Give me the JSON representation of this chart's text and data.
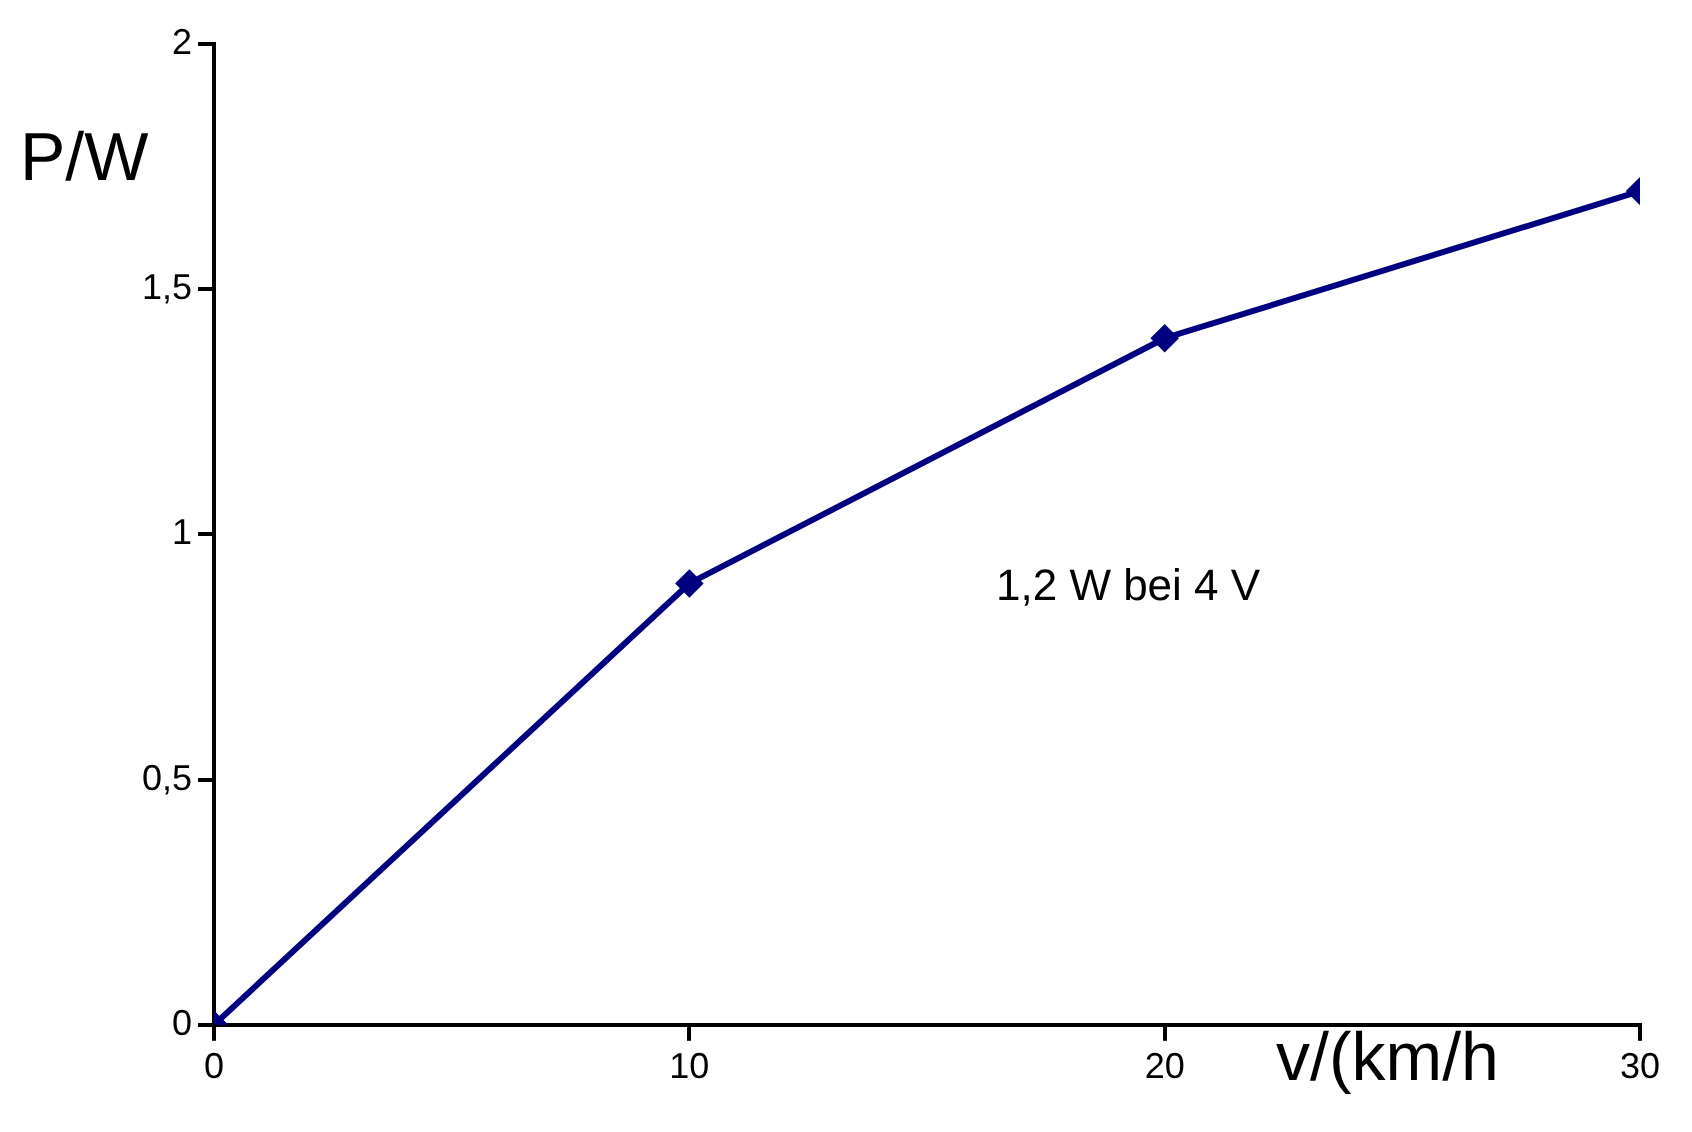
{
  "chart_data": {
    "type": "line",
    "xlabel": "v/(km/h",
    "ylabel": "P/W",
    "annotations": [
      "1,2 W bei 4 V"
    ],
    "x": [
      0,
      10,
      20,
      30
    ],
    "series": [
      {
        "color": "#000080",
        "values": [
          0,
          0.9,
          1.4,
          1.7
        ]
      }
    ],
    "xlim": [
      0,
      30
    ],
    "xticks": [
      0,
      10,
      20,
      30
    ],
    "ylim": [
      0,
      2
    ],
    "yticks": [
      0,
      {
        "value": 0.5,
        "label": "0,5"
      },
      1,
      {
        "value": 1.5,
        "label": "1,5"
      },
      2
    ],
    "grid": false,
    "legend": false,
    "marker": "diamond",
    "line_style": "solid"
  }
}
